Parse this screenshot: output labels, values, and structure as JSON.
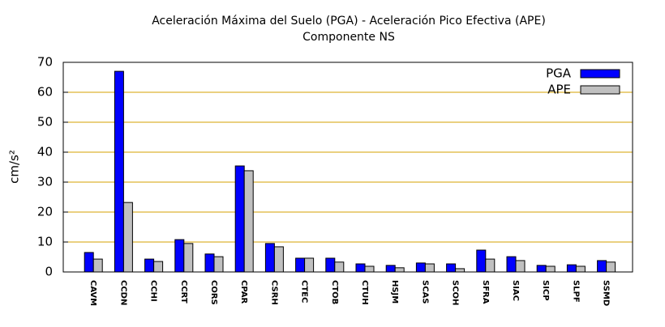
{
  "chart_data": {
    "type": "bar",
    "title": "Aceleración Máxima del Suelo (PGA) -  Aceleración Pico Efectiva (APE)",
    "subtitle": "Componente NS",
    "y_label": "cm/s²",
    "categories": [
      "CAVM",
      "CCDN",
      "CCHI",
      "CCRT",
      "CORS",
      "CPAR",
      "CSRH",
      "CTEC",
      "CTOB",
      "CTUH",
      "HSJM",
      "SCAS",
      "SCOH",
      "SFRA",
      "SIAC",
      "SICP",
      "SLPF",
      "SSMD"
    ],
    "series": [
      {
        "name": "PGA",
        "color": "#0000ff",
        "values": [
          6.5,
          67,
          4.3,
          10.8,
          6,
          35.4,
          9.5,
          4.6,
          4.6,
          2.7,
          2.2,
          3.0,
          2.7,
          7.3,
          5.1,
          2.2,
          2.4,
          3.8
        ]
      },
      {
        "name": "APE",
        "color": "#c0c0c0",
        "values": [
          4.3,
          23.2,
          3.5,
          9.5,
          5.1,
          33.8,
          8.4,
          4.6,
          3.3,
          1.9,
          1.4,
          2.7,
          1.1,
          4.3,
          3.8,
          1.9,
          1.9,
          3.3
        ]
      }
    ],
    "ylim": [
      0,
      70
    ],
    "yticks": [
      0,
      10,
      20,
      30,
      40,
      50,
      60,
      70
    ],
    "grid": true,
    "grid_color": "#d4a000",
    "legend": "top-right"
  }
}
